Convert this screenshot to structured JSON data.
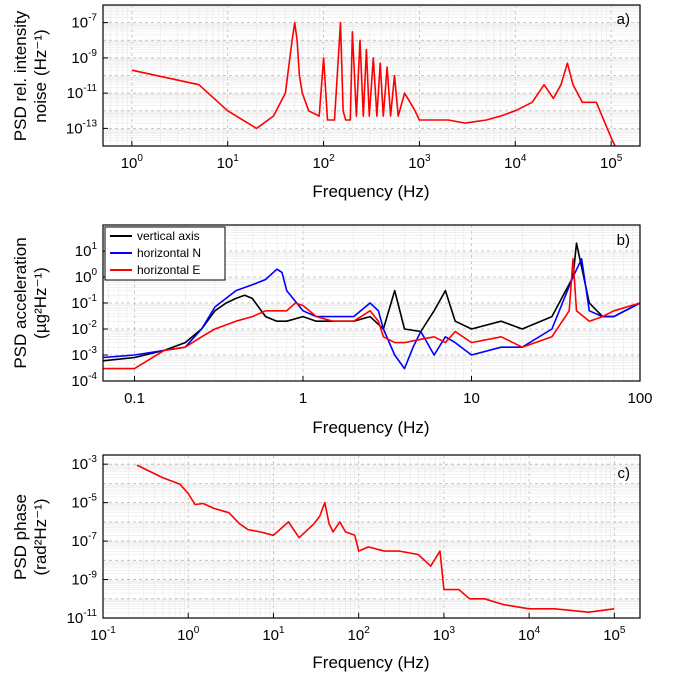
{
  "colors": {
    "red": "#ff0000",
    "blue": "#0000ff",
    "black": "#000000"
  },
  "chart_data": [
    {
      "type": "line",
      "panel_label": "a)",
      "xlabel": "Frequency (Hz)",
      "ylabel_line1": "PSD rel. intensity",
      "ylabel_line2": "noise",
      "ylabel_unit": "(Hz⁻¹)",
      "x_scale": "log",
      "y_scale": "log",
      "xlim": [
        0.5,
        200000
      ],
      "ylim": [
        1e-14,
        1e-06
      ],
      "grid": true,
      "xticks": [
        {
          "v": 1,
          "base": "10",
          "exp": "0"
        },
        {
          "v": 10,
          "base": "10",
          "exp": "1"
        },
        {
          "v": 100,
          "base": "10",
          "exp": "2"
        },
        {
          "v": 1000,
          "base": "10",
          "exp": "3"
        },
        {
          "v": 10000,
          "base": "10",
          "exp": "4"
        },
        {
          "v": 100000,
          "base": "10",
          "exp": "5"
        }
      ],
      "yticks": [
        {
          "v": 1e-13,
          "base": "10",
          "exp": "-13"
        },
        {
          "v": 1e-11,
          "base": "10",
          "exp": "-11"
        },
        {
          "v": 1e-09,
          "base": "10",
          "exp": "-9"
        },
        {
          "v": 1e-07,
          "base": "10",
          "exp": "-7"
        }
      ],
      "series": [
        {
          "color": "#ff0000",
          "x": [
            1,
            5,
            10,
            20,
            30,
            40,
            47,
            50,
            53,
            56,
            60,
            70,
            90,
            100,
            110,
            130,
            150,
            160,
            170,
            190,
            200,
            220,
            240,
            260,
            280,
            300,
            330,
            360,
            390,
            420,
            460,
            500,
            550,
            600,
            700,
            800,
            900,
            1000,
            2000,
            3000,
            5000,
            7000,
            10000,
            15000,
            20000,
            25000,
            30000,
            35000,
            40000,
            50000,
            70000,
            100000,
            110000
          ],
          "y": [
            2e-10,
            3e-11,
            1e-12,
            1e-13,
            5e-13,
            1e-11,
            1e-08,
            1e-07,
            1e-08,
            1e-10,
            1e-11,
            1e-12,
            5e-13,
            1e-09,
            3e-13,
            3e-13,
            1e-07,
            1e-12,
            3e-13,
            3e-13,
            3e-08,
            5e-13,
            1e-08,
            5e-13,
            3e-09,
            5e-13,
            1e-09,
            5e-13,
            5e-10,
            5e-13,
            3e-10,
            5e-13,
            1e-10,
            5e-13,
            1e-11,
            3e-12,
            1e-12,
            3e-13,
            3e-13,
            2e-13,
            3e-13,
            5e-13,
            1e-12,
            3e-12,
            3e-11,
            5e-12,
            3e-11,
            5e-10,
            3e-11,
            3e-12,
            3e-12,
            3e-14,
            1e-14
          ]
        }
      ]
    },
    {
      "type": "line",
      "panel_label": "b)",
      "xlabel": "Frequency (Hz)",
      "ylabel_line1": "PSD acceleration",
      "ylabel_unit": "(µg²Hz⁻¹)",
      "x_scale": "log",
      "y_scale": "log",
      "xlim": [
        0.065,
        100
      ],
      "ylim": [
        0.0001,
        100
      ],
      "grid": true,
      "legend_position": "top-left",
      "xticks": [
        {
          "v": 0.1,
          "label": "0.1"
        },
        {
          "v": 1,
          "label": "1"
        },
        {
          "v": 10,
          "label": "10"
        },
        {
          "v": 100,
          "label": "100"
        }
      ],
      "yticks": [
        {
          "v": 0.0001,
          "base": "10",
          "exp": "-4"
        },
        {
          "v": 0.001,
          "base": "10",
          "exp": "-3"
        },
        {
          "v": 0.01,
          "base": "10",
          "exp": "-2"
        },
        {
          "v": 0.1,
          "base": "10",
          "exp": "-1"
        },
        {
          "v": 1,
          "base": "10",
          "exp": "0"
        },
        {
          "v": 10,
          "base": "10",
          "exp": "1"
        }
      ],
      "series": [
        {
          "name": "vertical axis",
          "color": "#000000",
          "x": [
            0.065,
            0.1,
            0.15,
            0.2,
            0.25,
            0.3,
            0.35,
            0.4,
            0.45,
            0.5,
            0.6,
            0.7,
            0.8,
            1,
            1.2,
            1.5,
            2,
            2.5,
            3,
            3.5,
            4,
            5,
            6,
            7,
            8,
            10,
            15,
            20,
            30,
            40,
            42,
            50,
            60,
            70,
            100
          ],
          "y": [
            0.0006,
            0.0008,
            0.0015,
            0.003,
            0.01,
            0.05,
            0.1,
            0.15,
            0.2,
            0.15,
            0.03,
            0.02,
            0.02,
            0.03,
            0.02,
            0.02,
            0.02,
            0.03,
            0.01,
            0.3,
            0.01,
            0.008,
            0.05,
            0.3,
            0.02,
            0.01,
            0.02,
            0.01,
            0.03,
            1,
            20,
            0.1,
            0.03,
            0.03,
            0.1
          ]
        },
        {
          "name": "horizontal N",
          "color": "#0000ff",
          "x": [
            0.065,
            0.1,
            0.15,
            0.2,
            0.25,
            0.3,
            0.4,
            0.5,
            0.6,
            0.7,
            0.75,
            0.8,
            1,
            1.2,
            1.5,
            2,
            2.5,
            2.8,
            3,
            3.5,
            4,
            4.5,
            5,
            6,
            7,
            8,
            10,
            15,
            20,
            30,
            40,
            45,
            50,
            60,
            70,
            100
          ],
          "y": [
            0.0008,
            0.001,
            0.0015,
            0.002,
            0.01,
            0.07,
            0.3,
            0.5,
            0.8,
            2,
            1.5,
            0.3,
            0.05,
            0.03,
            0.03,
            0.03,
            0.1,
            0.05,
            0.01,
            0.001,
            0.0003,
            0.002,
            0.008,
            0.001,
            0.005,
            0.003,
            0.001,
            0.002,
            0.002,
            0.01,
            1,
            5,
            0.05,
            0.03,
            0.03,
            0.1
          ]
        },
        {
          "name": "horizontal E",
          "color": "#ff0000",
          "x": [
            0.065,
            0.1,
            0.15,
            0.2,
            0.25,
            0.3,
            0.4,
            0.5,
            0.6,
            0.8,
            0.9,
            1,
            1.2,
            1.5,
            2,
            2.5,
            2.8,
            3,
            3.5,
            4,
            5,
            6,
            7,
            8,
            10,
            15,
            20,
            30,
            38,
            40,
            42,
            50,
            60,
            70,
            100
          ],
          "y": [
            0.0003,
            0.0003,
            0.0015,
            0.002,
            0.005,
            0.01,
            0.02,
            0.03,
            0.05,
            0.05,
            0.1,
            0.08,
            0.03,
            0.02,
            0.02,
            0.05,
            0.02,
            0.005,
            0.003,
            0.003,
            0.004,
            0.005,
            0.003,
            0.008,
            0.003,
            0.005,
            0.002,
            0.005,
            0.05,
            5,
            0.05,
            0.02,
            0.03,
            0.05,
            0.1
          ]
        }
      ]
    },
    {
      "type": "line",
      "panel_label": "c)",
      "xlabel": "Frequency (Hz)",
      "ylabel_line1": "PSD phase",
      "ylabel_unit": "(rad²Hz⁻¹)",
      "x_scale": "log",
      "y_scale": "log",
      "xlim": [
        0.1,
        200000
      ],
      "ylim": [
        1e-11,
        0.003
      ],
      "grid": true,
      "xticks": [
        {
          "v": 0.1,
          "base": "10",
          "exp": "-1"
        },
        {
          "v": 1,
          "base": "10",
          "exp": "0"
        },
        {
          "v": 10,
          "base": "10",
          "exp": "1"
        },
        {
          "v": 100,
          "base": "10",
          "exp": "2"
        },
        {
          "v": 1000,
          "base": "10",
          "exp": "3"
        },
        {
          "v": 10000,
          "base": "10",
          "exp": "4"
        },
        {
          "v": 100000,
          "base": "10",
          "exp": "5"
        }
      ],
      "yticks": [
        {
          "v": 1e-11,
          "base": "10",
          "exp": "-11"
        },
        {
          "v": 1e-09,
          "base": "10",
          "exp": "-9"
        },
        {
          "v": 1e-07,
          "base": "10",
          "exp": "-7"
        },
        {
          "v": 1e-05,
          "base": "10",
          "exp": "-5"
        },
        {
          "v": 0.001,
          "base": "10",
          "exp": "-3"
        }
      ],
      "series": [
        {
          "color": "#ff0000",
          "x": [
            0.25,
            0.5,
            0.8,
            1,
            1.2,
            1.5,
            2,
            3,
            4,
            5,
            7,
            10,
            15,
            20,
            30,
            35,
            40,
            45,
            50,
            60,
            70,
            90,
            100,
            130,
            200,
            300,
            500,
            700,
            900,
            1000,
            1500,
            2000,
            3000,
            5000,
            10000,
            20000,
            50000,
            100000
          ],
          "y": [
            0.0009,
            0.0002,
            9e-05,
            3e-05,
            8e-06,
            9e-06,
            5e-06,
            3e-06,
            8e-07,
            4e-07,
            3e-07,
            2e-07,
            1e-06,
            1.5e-07,
            8e-07,
            2e-06,
            1e-05,
            8e-07,
            3e-07,
            1e-06,
            3e-07,
            2e-07,
            3e-08,
            5e-08,
            3e-08,
            3e-08,
            2e-08,
            5e-09,
            3e-08,
            3e-10,
            3e-10,
            1e-10,
            1e-10,
            5e-11,
            3e-11,
            3e-11,
            2e-11,
            3e-11
          ]
        }
      ]
    }
  ]
}
